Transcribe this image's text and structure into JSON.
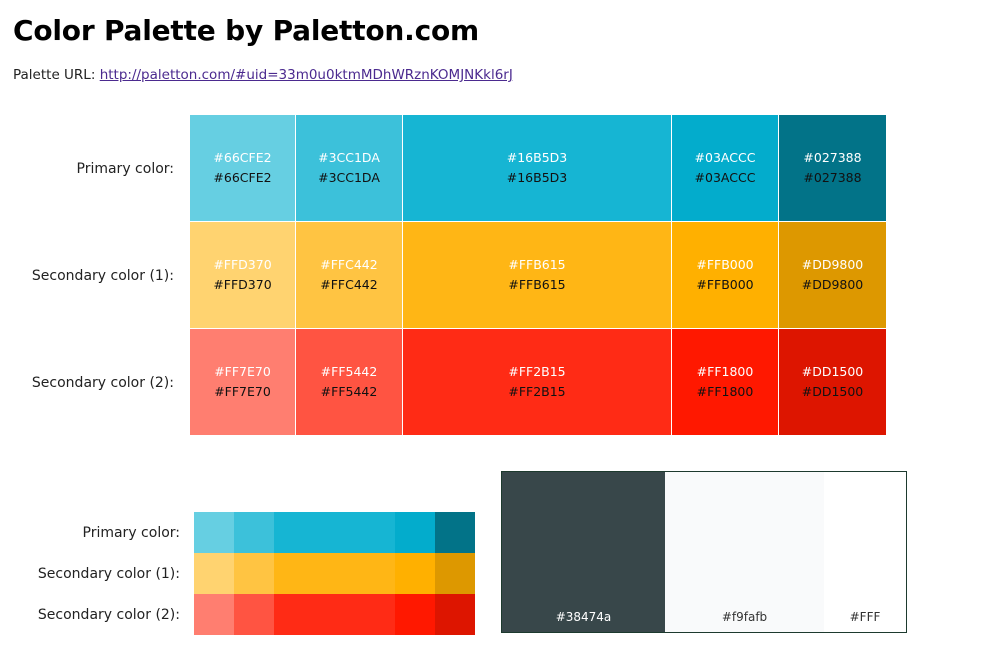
{
  "page": {
    "title": "Color Palette by Paletton.com",
    "url_label": "Palette URL:",
    "url_text": "http://paletton.com/#uid=33m0u0ktmMDhWRznKOMJNKkl6rJ"
  },
  "palette": {
    "rows": [
      {
        "label": "Primary color:",
        "colors": [
          "#66CFE2",
          "#3CC1DA",
          "#16B5D3",
          "#03ACCC",
          "#027388"
        ]
      },
      {
        "label": "Secondary color (1):",
        "colors": [
          "#FFD370",
          "#FFC442",
          "#FFB615",
          "#FFB000",
          "#DD9800"
        ]
      },
      {
        "label": "Secondary color (2):",
        "colors": [
          "#FF7E70",
          "#FF5442",
          "#FF2B15",
          "#FF1800",
          "#DD1500"
        ]
      }
    ]
  },
  "neutrals": [
    {
      "hex": "#38474a",
      "label": "#38474a",
      "text_color": "#ffffff"
    },
    {
      "hex": "#f9fafb",
      "label": "#f9fafb",
      "text_color": "#333333"
    },
    {
      "hex": "#FFF",
      "label": "#FFF",
      "text_color": "#333333"
    }
  ]
}
